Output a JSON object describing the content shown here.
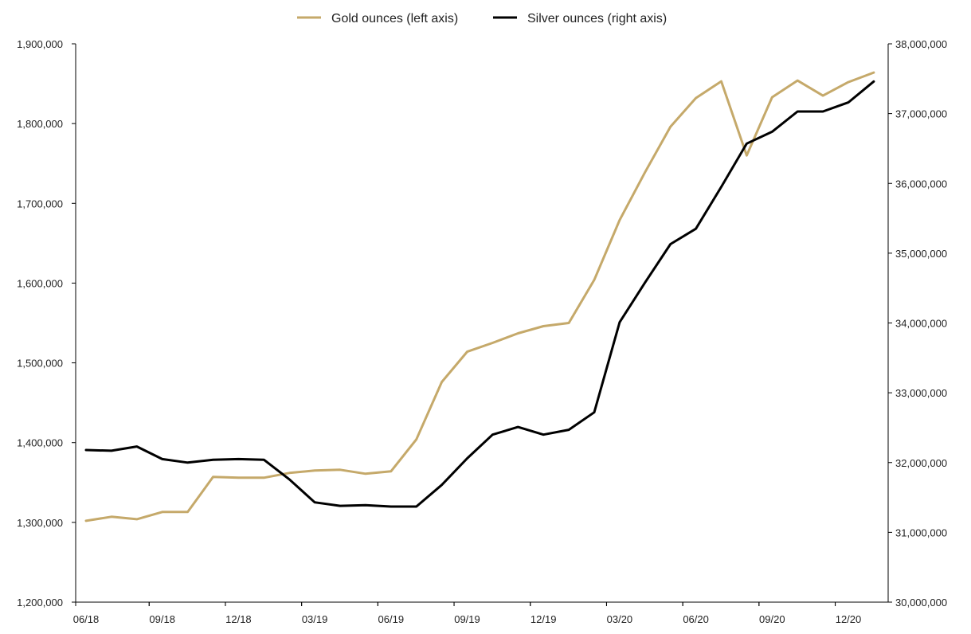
{
  "chart_data": {
    "type": "line",
    "title": "",
    "xlabel": "",
    "ylabel_left": "",
    "ylabel_right": "",
    "legend_position": "top-center",
    "grid": false,
    "x_tick_labels": [
      "06/18",
      "09/18",
      "12/18",
      "03/19",
      "06/19",
      "09/19",
      "12/19",
      "03/20",
      "06/20",
      "09/20",
      "12/20"
    ],
    "x_points": 32,
    "y_left": {
      "min": 1200000,
      "max": 1900000,
      "step": 100000,
      "tick_labels": [
        "1,200,000",
        "1,300,000",
        "1,400,000",
        "1,500,000",
        "1,600,000",
        "1,700,000",
        "1,800,000",
        "1,900,000"
      ]
    },
    "y_right": {
      "min": 30000000,
      "max": 38000000,
      "step": 1000000,
      "tick_labels": [
        "30,000,000",
        "31,000,000",
        "32,000,000",
        "33,000,000",
        "34,000,000",
        "35,000,000",
        "36,000,000",
        "37,000,000",
        "38,000,000"
      ]
    },
    "series": [
      {
        "name": "Gold ounces (left axis)",
        "axis": "left",
        "color": "#C5A96A",
        "values": [
          1302000,
          1307000,
          1304000,
          1313000,
          1313000,
          1357000,
          1356000,
          1356000,
          1362000,
          1365000,
          1366000,
          1361000,
          1364000,
          1404000,
          1476000,
          1514000,
          1525000,
          1537000,
          1546000,
          1550000,
          1604000,
          1679000,
          1739000,
          1796000,
          1832000,
          1853000,
          1760000,
          1833000,
          1854000,
          1835000,
          1852000,
          1864000
        ]
      },
      {
        "name": "Silver ounces (right axis)",
        "axis": "right",
        "color": "#000000",
        "values": [
          32180000,
          32170000,
          32230000,
          32050000,
          32000000,
          32040000,
          32050000,
          32040000,
          31760000,
          31430000,
          31380000,
          31390000,
          31370000,
          31370000,
          31680000,
          32060000,
          32400000,
          32510000,
          32400000,
          32470000,
          32720000,
          34010000,
          34580000,
          35130000,
          35350000,
          35950000,
          36570000,
          36740000,
          37030000,
          37030000,
          37160000,
          37460000
        ]
      }
    ]
  }
}
